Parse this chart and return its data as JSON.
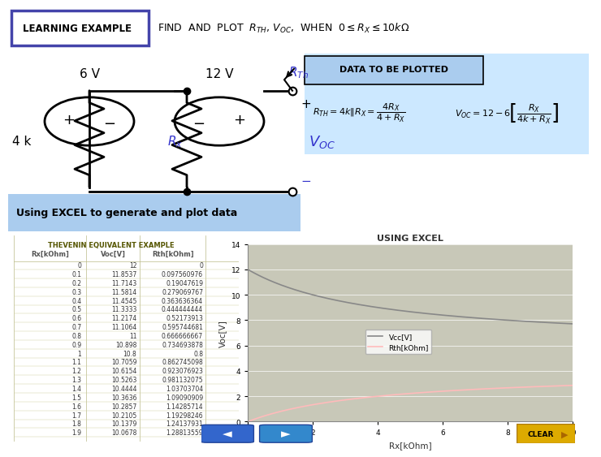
{
  "title_main": "THEVENIN EQUIVALENT EXAMPLE",
  "chart_title": "USING EXCEL",
  "xlabel": "Rx[kOhm]",
  "ylabel": "Voc[V]",
  "xlim": [
    0,
    10
  ],
  "ylim": [
    0,
    14
  ],
  "xticks": [
    0,
    2,
    4,
    6,
    8,
    10
  ],
  "yticks": [
    0,
    2,
    4,
    6,
    8,
    10,
    12,
    14
  ],
  "voc_color": "#888888",
  "rth_color": "#ffbbbb",
  "legend_voc": "Vcc[V]",
  "legend_rth": "Rth[kOhm]",
  "table_header": [
    "Rx[kOhm]",
    "Voc[V]",
    "Rth[kOhm]"
  ],
  "rx_values": [
    0,
    0.1,
    0.2,
    0.3,
    0.4,
    0.5,
    0.6,
    0.7,
    0.8,
    0.9,
    1.0,
    1.1,
    1.2,
    1.3,
    1.4,
    1.5,
    1.6,
    1.7,
    1.8,
    1.9
  ],
  "voc_table": [
    12,
    11.8537,
    11.7143,
    11.5814,
    11.4545,
    11.3333,
    11.2174,
    11.1064,
    11,
    10.898,
    10.8,
    10.7059,
    10.6154,
    10.5263,
    10.4444,
    10.3636,
    10.2857,
    10.2105,
    10.1379,
    10.0678
  ],
  "rth_table": [
    0,
    0.097560976,
    0.19047619,
    0.279069767,
    0.363636364,
    0.444444444,
    0.52173913,
    0.595744681,
    0.666666667,
    0.734693878,
    0.8,
    0.862745098,
    0.923076923,
    0.981132075,
    1.037037037,
    1.090909091,
    1.142857143,
    1.192982456,
    1.24137931,
    1.288135593
  ],
  "slide_bg": "#ffffff",
  "top_banner_bg": "#ddeeff",
  "learning_example_bg": "#ffffff",
  "learning_example_border": "#4444aa",
  "data_box_bg": "#cce8ff",
  "spreadsheet_bg": "#ffffdd",
  "plot_area_bg": "#c8c8b8",
  "nav_left_color": "#3366cc",
  "nav_right_color": "#3388cc",
  "clear_bg": "#ddaa00",
  "clear_fg": "#000000",
  "blue_label_color": "#3333cc"
}
